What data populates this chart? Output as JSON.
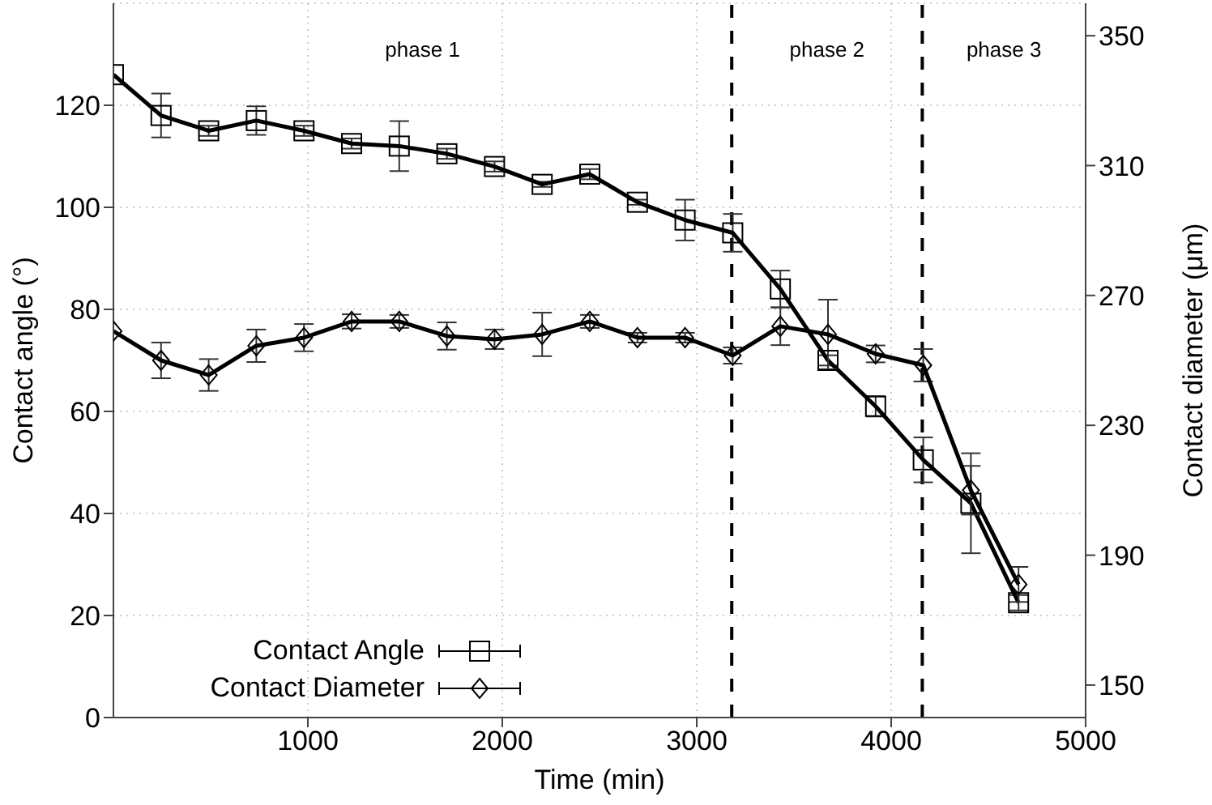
{
  "chart_data": {
    "type": "line",
    "xlabel": "Time (min)",
    "ylabel": "Contact angle (°)",
    "y2label": "Contact diameter (μm)",
    "x": [
      0,
      245,
      490,
      735,
      980,
      1225,
      1470,
      1715,
      1960,
      2205,
      2450,
      2695,
      2940,
      3185,
      3430,
      3675,
      3920,
      4165,
      4410,
      4655
    ],
    "series": [
      {
        "name": "Contact Angle",
        "color": "#000000",
        "marker": "square",
        "values": [
          126,
          118,
          115,
          117,
          115,
          112.5,
          112,
          110.5,
          108,
          104.5,
          106.5,
          101,
          97.5,
          95,
          84,
          70,
          61,
          50.5,
          42,
          22.5
        ],
        "errors": [
          null,
          4.3,
          1,
          2.8,
          1,
          1,
          4.9,
          1,
          1,
          0.5,
          1,
          0.5,
          4,
          3.7,
          3.6,
          1,
          2,
          4.4,
          9.8,
          1.5
        ]
      },
      {
        "name": "Contact Diameter",
        "color": "#000000",
        "marker": "diamond",
        "axis": "y2",
        "values": [
          259,
          250,
          245.5,
          254.5,
          257,
          262,
          262,
          257.5,
          256.5,
          258,
          262,
          257,
          257,
          251.5,
          260.5,
          258,
          252,
          248.5,
          210,
          181
        ],
        "errors": [
          null,
          5.5,
          4.9,
          5,
          4.2,
          2.2,
          2,
          4.2,
          3,
          6.7,
          2,
          1.5,
          1.5,
          2.5,
          5.8,
          10.7,
          2.6,
          5,
          7.5,
          5.4
        ]
      }
    ],
    "xlim": [
      0,
      5000
    ],
    "xticks": [
      1000,
      2000,
      3000,
      4000,
      5000
    ],
    "ylim": [
      0,
      140
    ],
    "yticks": [
      0,
      20,
      40,
      60,
      80,
      100,
      120
    ],
    "y2lim": [
      140,
      360
    ],
    "y2ticks": [
      150,
      190,
      230,
      270,
      310,
      350
    ],
    "ref_lines": [
      {
        "axis": "x",
        "value": 3180,
        "color": "#000000",
        "line_style": "dashed"
      },
      {
        "axis": "x",
        "value": 4160,
        "color": "#000000",
        "line_style": "dashed"
      }
    ],
    "annotations": [
      "phase 1",
      "phase 2",
      "phase 3"
    ],
    "grid": true,
    "legend": "bottom left",
    "line_style": "solid"
  }
}
